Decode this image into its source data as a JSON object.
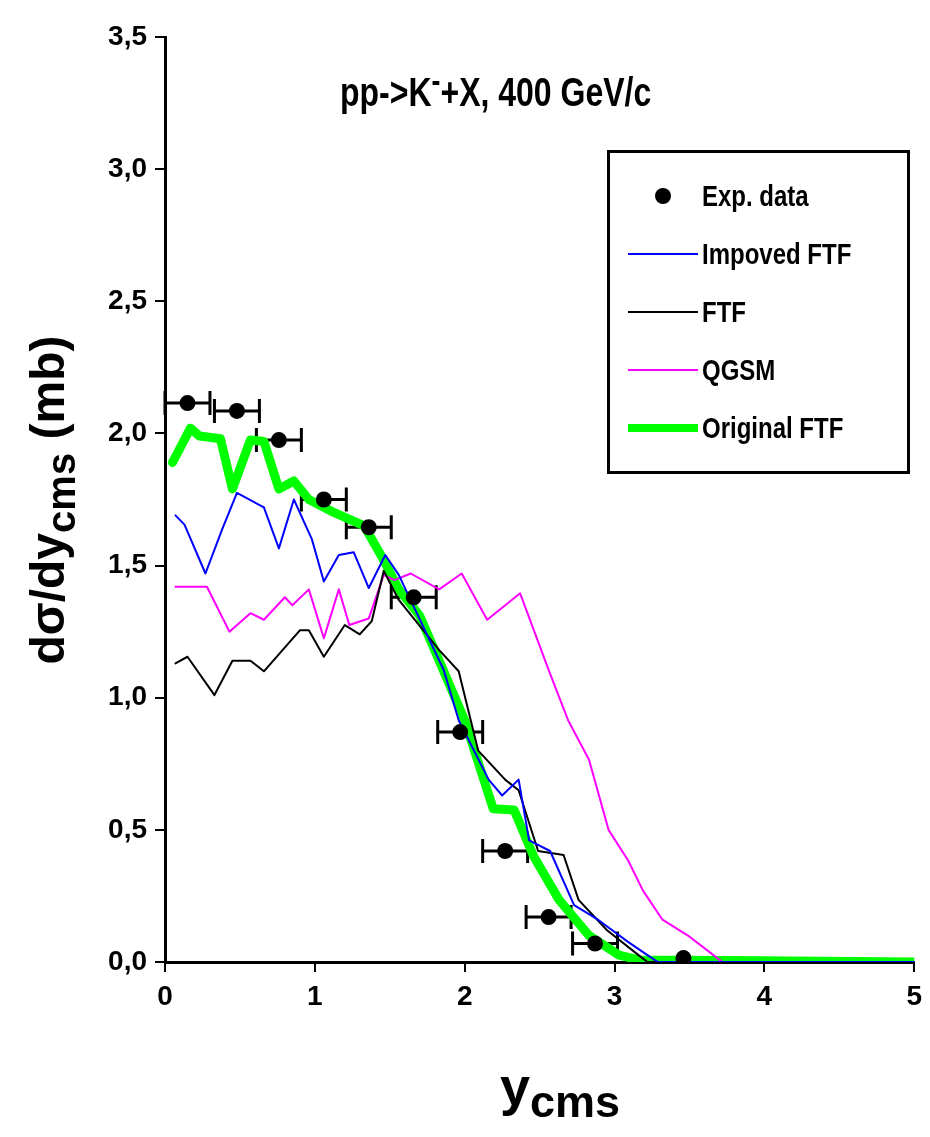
{
  "chart_data": {
    "type": "line",
    "title": "pp->K$^{-}$+X, 400 GeV/c",
    "xlabel": "y$_{cms}$",
    "ylabel": "dσ/dy$_{cms}$ (mb)",
    "xlim": [
      0,
      5
    ],
    "xticks": [
      0,
      1,
      2,
      3,
      4,
      5
    ],
    "ylim": [
      0,
      3.5
    ],
    "yticks": [
      {
        "value": 0,
        "label": "0,0"
      },
      {
        "value": 0.5,
        "label": "0,5"
      },
      {
        "value": 1,
        "label": "1,0"
      },
      {
        "value": 1.5,
        "label": "1,5"
      },
      {
        "value": 2,
        "label": "2,0"
      },
      {
        "value": 2.5,
        "label": "2,5"
      },
      {
        "value": 3,
        "label": "3,0"
      },
      {
        "value": 3.5,
        "label": "3,5"
      }
    ],
    "grid": false,
    "legend": "top right",
    "series": [
      {
        "name": "Exp. data",
        "type": "scatter",
        "marker": "circle",
        "color": "#000000",
        "x": [
          0.15,
          0.48,
          0.76,
          1.06,
          1.36,
          1.66,
          1.97,
          2.27,
          2.56,
          2.87,
          3.46
        ],
        "values": [
          2.115,
          2.085,
          1.975,
          1.75,
          1.645,
          1.38,
          0.87,
          0.42,
          0.17,
          0.07,
          0.015
        ],
        "xerrors": [
          0.15,
          0.15,
          0.15,
          0.15,
          0.15,
          0.15,
          0.15,
          0.15,
          0.15,
          0.15,
          null
        ]
      },
      {
        "name": "Impoved FTF",
        "marker": "none",
        "color": "#0000ff",
        "x": [
          0.07,
          0.13,
          0.27,
          0.38,
          0.48,
          0.66,
          0.76,
          0.86,
          0.98,
          1.06,
          1.16,
          1.26,
          1.36,
          1.47,
          1.56,
          1.86,
          1.96,
          2.16,
          2.25,
          2.36,
          2.43,
          2.57,
          2.73,
          2.89,
          3.09,
          3.22,
          3.29,
          5
        ],
        "values": [
          1.69,
          1.655,
          1.47,
          1.635,
          1.775,
          1.72,
          1.565,
          1.75,
          1.6,
          1.44,
          1.54,
          1.55,
          1.415,
          1.54,
          1.465,
          1.105,
          0.915,
          0.69,
          0.63,
          0.69,
          0.46,
          0.42,
          0.215,
          0.16,
          0.076,
          0.026,
          0,
          0
        ]
      },
      {
        "name": "FTF",
        "marker": "none",
        "color": "#000000",
        "x": [
          0.07,
          0.15,
          0.33,
          0.45,
          0.57,
          0.66,
          0.9,
          0.96,
          1.06,
          1.2,
          1.3,
          1.38,
          1.46,
          1.56,
          1.83,
          1.96,
          2.09,
          2.27,
          2.36,
          2.49,
          2.66,
          2.76,
          2.95,
          3.16,
          3.22,
          5
        ],
        "values": [
          1.13,
          1.155,
          1.01,
          1.14,
          1.14,
          1.1,
          1.255,
          1.255,
          1.155,
          1.275,
          1.24,
          1.29,
          1.48,
          1.37,
          1.18,
          1.1,
          0.8,
          0.69,
          0.65,
          0.42,
          0.405,
          0.235,
          0.12,
          0.026,
          0,
          0
        ]
      },
      {
        "name": "QGSM",
        "marker": "none",
        "color": "#ff00ff",
        "x": [
          0.07,
          0.28,
          0.43,
          0.57,
          0.66,
          0.8,
          0.85,
          0.96,
          1.06,
          1.16,
          1.23,
          1.36,
          1.46,
          1.53,
          1.64,
          1.83,
          1.98,
          2.15,
          2.37,
          2.56,
          2.69,
          2.83,
          2.96,
          3.09,
          3.19,
          3.32,
          3.49,
          3.66,
          3.72,
          5
        ],
        "values": [
          1.42,
          1.42,
          1.25,
          1.32,
          1.295,
          1.38,
          1.35,
          1.41,
          1.225,
          1.41,
          1.275,
          1.3,
          1.465,
          1.445,
          1.47,
          1.41,
          1.47,
          1.295,
          1.395,
          1.105,
          0.915,
          0.765,
          0.5,
          0.385,
          0.27,
          0.16,
          0.1,
          0.026,
          0,
          0
        ]
      },
      {
        "name": "Original FTF",
        "marker": "none",
        "color": "#00ff00",
        "x": [
          0.05,
          0.17,
          0.23,
          0.37,
          0.45,
          0.57,
          0.66,
          0.76,
          0.86,
          0.96,
          1.13,
          1.33,
          1.46,
          1.56,
          1.7,
          1.83,
          2.0,
          2.19,
          2.33,
          2.46,
          2.63,
          2.83,
          3.03,
          3.16,
          5
        ],
        "values": [
          1.89,
          2.02,
          1.99,
          1.98,
          1.79,
          1.975,
          1.97,
          1.79,
          1.82,
          1.75,
          1.7,
          1.65,
          1.52,
          1.41,
          1.31,
          1.14,
          0.915,
          0.58,
          0.575,
          0.4,
          0.235,
          0.1,
          0.026,
          0.008,
          0
        ]
      }
    ]
  }
}
